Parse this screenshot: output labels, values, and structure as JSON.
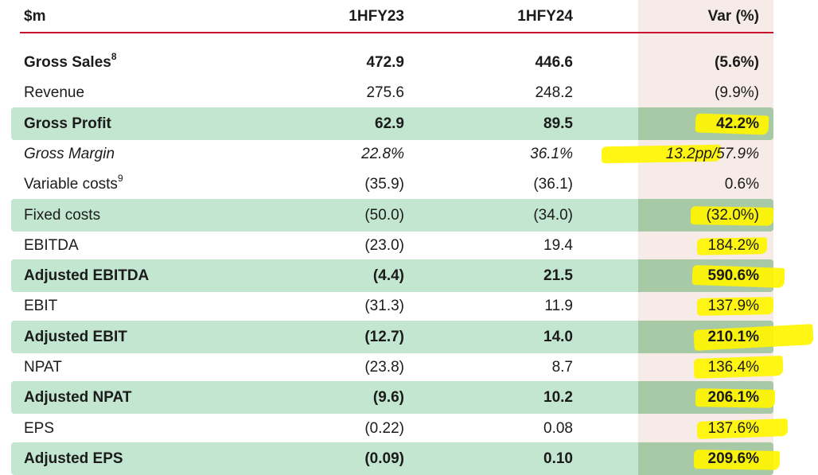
{
  "header": {
    "metric": "$m",
    "col_a": "1HFY23",
    "col_b": "1HFY24",
    "col_var": "Var (%)"
  },
  "rows": [
    {
      "label": "Gross Sales",
      "sup": "8",
      "a": "472.9",
      "b": "446.6",
      "v": "(5.6%)",
      "style": "bold",
      "highlighted": false
    },
    {
      "label": "Revenue",
      "sup": "",
      "a": "275.6",
      "b": "248.2",
      "v": "(9.9%)",
      "style": "normal",
      "highlighted": false
    },
    {
      "label": "Gross Profit",
      "sup": "",
      "a": "62.9",
      "b": "89.5",
      "v": "42.2%",
      "style": "bold",
      "highlighted": true,
      "marked": true
    },
    {
      "label": "Gross Margin",
      "sup": "",
      "a": "22.8%",
      "b": "36.1%",
      "v": "13.2pp/57.9%",
      "style": "italic",
      "highlighted": false,
      "marked": true
    },
    {
      "label": "Variable costs",
      "sup": "9",
      "a": "(35.9)",
      "b": "(36.1)",
      "v": "0.6%",
      "style": "normal",
      "highlighted": false
    },
    {
      "label": "Fixed costs",
      "sup": "",
      "a": "(50.0)",
      "b": "(34.0)",
      "v": "(32.0%)",
      "style": "normal",
      "highlighted": true,
      "marked": true
    },
    {
      "label": "EBITDA",
      "sup": "",
      "a": "(23.0)",
      "b": "19.4",
      "v": "184.2%",
      "style": "normal",
      "highlighted": false,
      "marked": true
    },
    {
      "label": "Adjusted EBITDA",
      "sup": "",
      "a": "(4.4)",
      "b": "21.5",
      "v": "590.6%",
      "style": "bold",
      "highlighted": true,
      "marked": true
    },
    {
      "label": "EBIT",
      "sup": "",
      "a": "(31.3)",
      "b": "11.9",
      "v": "137.9%",
      "style": "normal",
      "highlighted": false,
      "marked": true
    },
    {
      "label": "Adjusted EBIT",
      "sup": "",
      "a": "(12.7)",
      "b": "14.0",
      "v": "210.1%",
      "style": "bold",
      "highlighted": true,
      "marked": true
    },
    {
      "label": "NPAT",
      "sup": "",
      "a": "(23.8)",
      "b": "8.7",
      "v": "136.4%",
      "style": "normal",
      "highlighted": false,
      "marked": true
    },
    {
      "label": "Adjusted NPAT",
      "sup": "",
      "a": "(9.6)",
      "b": "10.2",
      "v": "206.1%",
      "style": "bold",
      "highlighted": true,
      "marked": true
    },
    {
      "label": "EPS",
      "sup": "",
      "a": "(0.22)",
      "b": "0.08",
      "v": "137.6%",
      "style": "normal",
      "highlighted": false,
      "marked": true
    },
    {
      "label": "Adjusted EPS",
      "sup": "",
      "a": "(0.09)",
      "b": "0.10",
      "v": "209.6%",
      "style": "bold",
      "highlighted": true,
      "marked": true
    }
  ],
  "colors": {
    "rule": "#c8102e",
    "row_highlight": "#c2e6cf",
    "var_column": "#f6ebe6",
    "marker": "#fff500"
  }
}
